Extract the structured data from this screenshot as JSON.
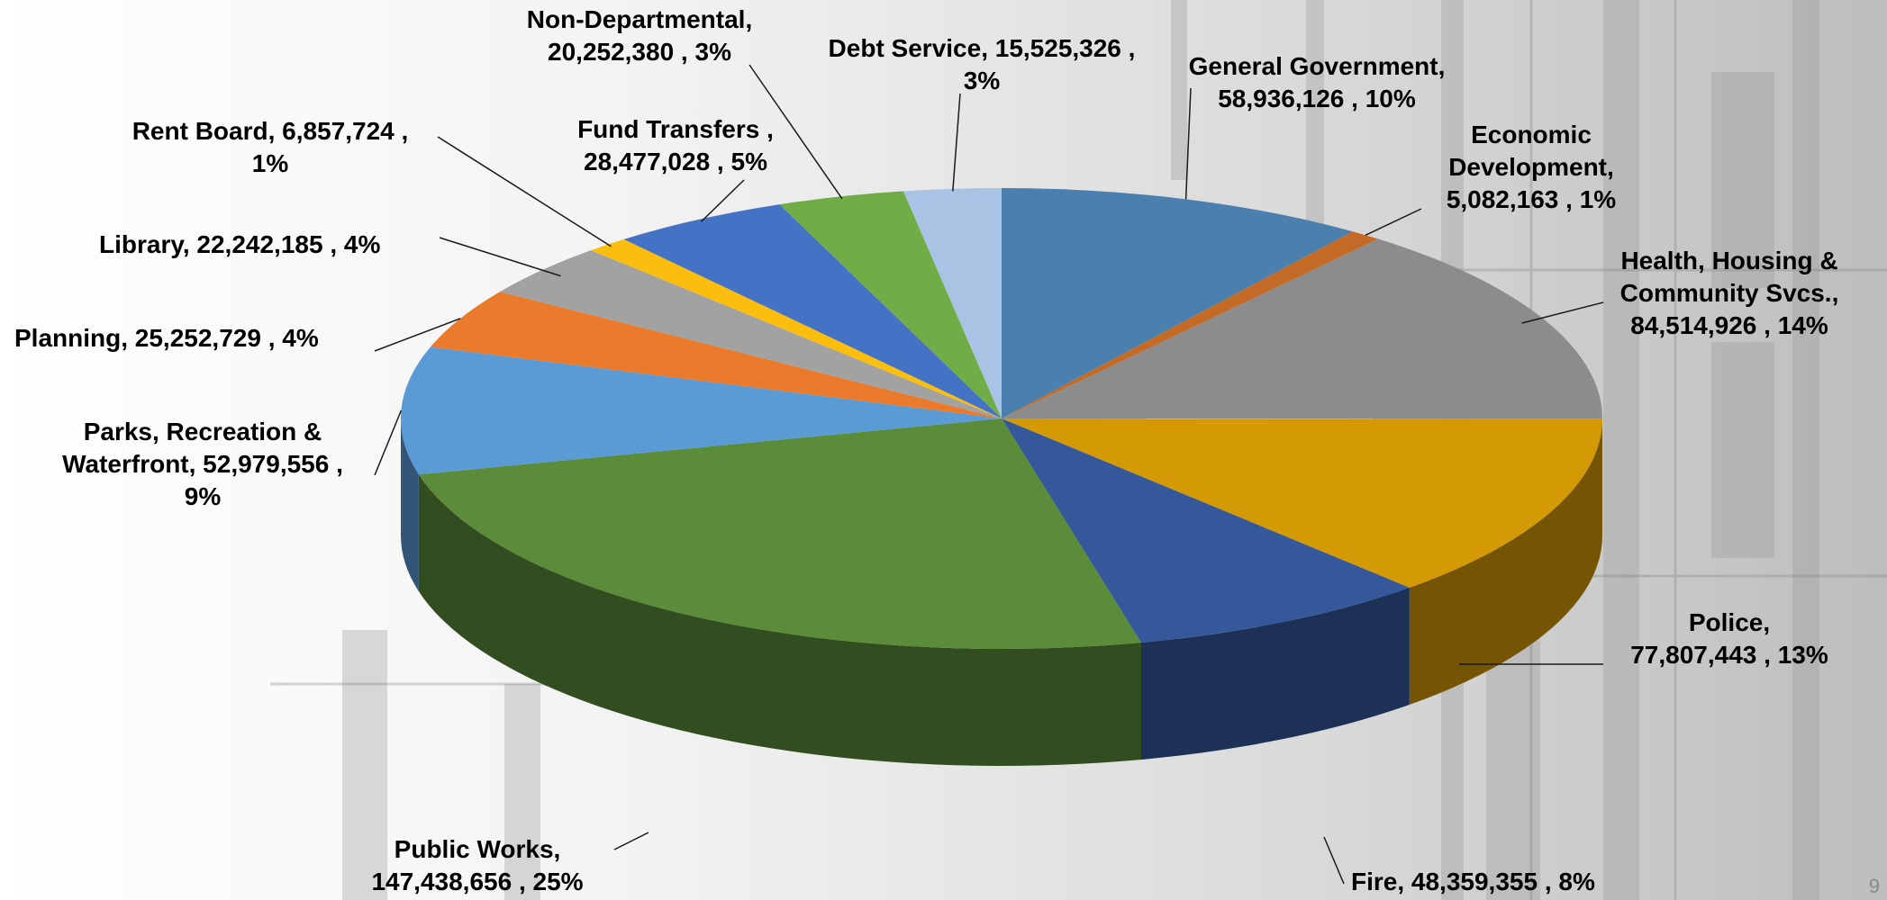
{
  "chart_data": {
    "type": "pie",
    "title": "",
    "style": "3d",
    "slices": [
      {
        "name": "General Government",
        "value": 58936126,
        "percent": "10%",
        "color": "#4a7fae",
        "label_lines": [
          "General Government,",
          "58,936,126 , 10%"
        ]
      },
      {
        "name": "Economic Development",
        "value": 5082163,
        "percent": "1%",
        "color": "#c46a27",
        "label_lines": [
          "Economic",
          "Development,",
          "5,082,163 , 1%"
        ]
      },
      {
        "name": "Health, Housing & Community Svcs.",
        "value": 84514926,
        "percent": "14%",
        "color": "#8c8c8c",
        "label_lines": [
          "Health, Housing &",
          "Community Svcs.,",
          "84,514,926 , 14%"
        ]
      },
      {
        "name": "Police",
        "value": 77807443,
        "percent": "13%",
        "color": "#d49a06",
        "label_lines": [
          "Police,",
          "77,807,443 , 13%"
        ]
      },
      {
        "name": "Fire",
        "value": 48359355,
        "percent": "8%",
        "color": "#35589b",
        "label_lines": [
          "Fire,  48,359,355 , 8%"
        ]
      },
      {
        "name": "Public Works",
        "value": 147438656,
        "percent": "25%",
        "color": "#5a8c3a",
        "label_lines": [
          "Public Works,",
          "147,438,656 , 25%"
        ]
      },
      {
        "name": "Parks, Recreation & Waterfront",
        "value": 52979556,
        "percent": "9%",
        "color": "#5b9bd5",
        "label_lines": [
          "Parks, Recreation &",
          "Waterfront,  52,979,556 ,",
          "9%"
        ]
      },
      {
        "name": "Planning",
        "value": 25252729,
        "percent": "4%",
        "color": "#ea7b2c",
        "label_lines": [
          "Planning,  25,252,729 , 4%"
        ]
      },
      {
        "name": "Library",
        "value": 22242185,
        "percent": "4%",
        "color": "#a2a2a2",
        "label_lines": [
          "Library,  22,242,185 , 4%"
        ]
      },
      {
        "name": "Rent Board",
        "value": 6857724,
        "percent": "1%",
        "color": "#fbbd0e",
        "label_lines": [
          "Rent Board,  6,857,724 ,",
          "1%"
        ]
      },
      {
        "name": "Fund Transfers",
        "value": 28477028,
        "percent": "5%",
        "color": "#4472c4",
        "label_lines": [
          "Fund Transfers ,",
          "28,477,028 , 5%"
        ]
      },
      {
        "name": "Non-Departmental",
        "value": 20252380,
        "percent": "3%",
        "color": "#70ad47",
        "label_lines": [
          "Non-Departmental,",
          "20,252,380 , 3%"
        ]
      },
      {
        "name": "Debt Service",
        "value": 15525326,
        "percent": "3%",
        "color": "#a9c3e4",
        "label_lines": [
          "Debt Service,  15,525,326 ,",
          "3%"
        ]
      }
    ]
  },
  "page_number": "9"
}
